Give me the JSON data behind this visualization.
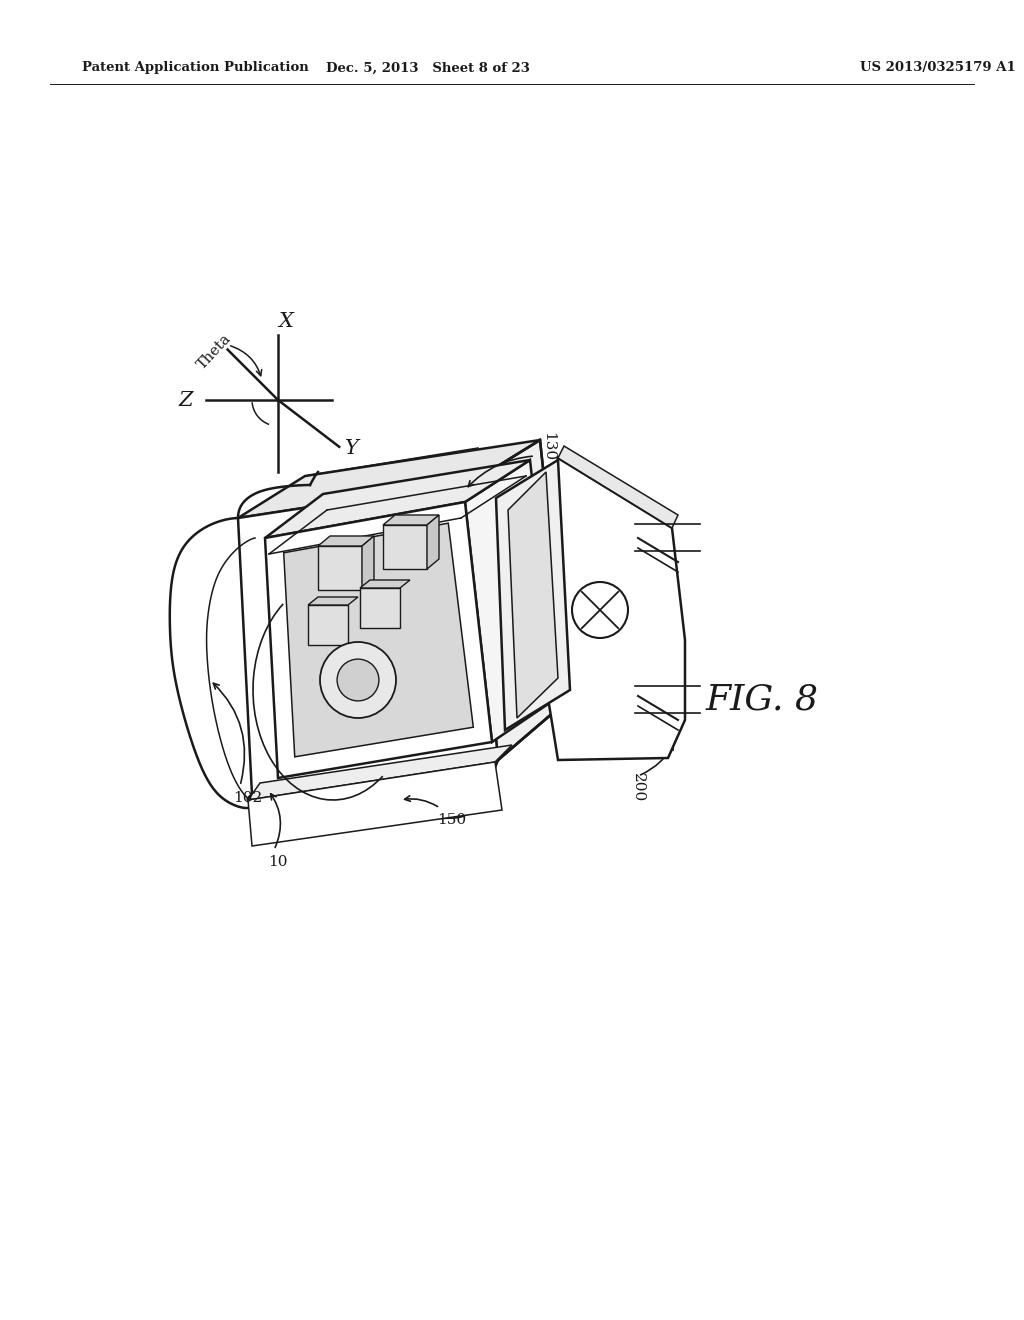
{
  "background_color": "#ffffff",
  "line_color": "#1a1a1a",
  "header_left": "Patent Application Publication",
  "header_mid": "Dec. 5, 2013   Sheet 8 of 23",
  "header_right": "US 2013/0325179 A1",
  "fig_label": "FIG. 8"
}
